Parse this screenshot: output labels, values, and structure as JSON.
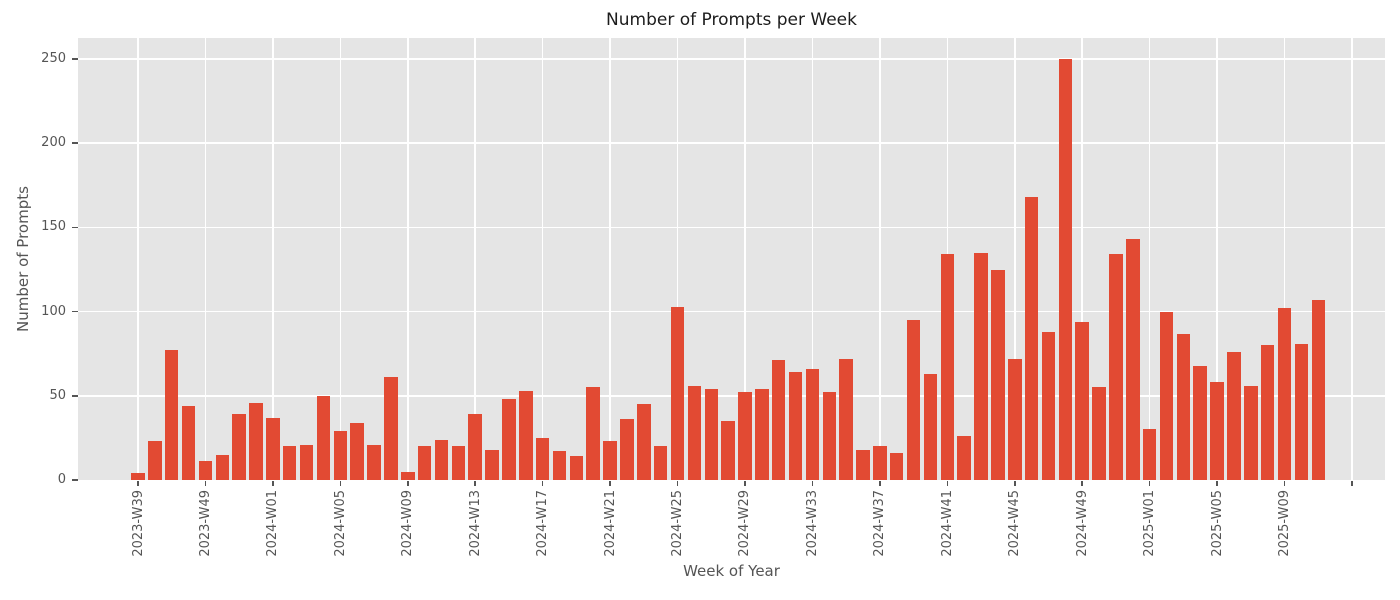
{
  "chart_data": {
    "type": "bar",
    "title": "Number of Prompts per Week",
    "xlabel": "Week of Year",
    "ylabel": "Number of Prompts",
    "ylim": [
      0,
      262.5
    ],
    "yticks": [
      0,
      50,
      100,
      150,
      200,
      250
    ],
    "grid": true,
    "legend": false,
    "bar_color": "#E24A33",
    "plot_bg": "#E5E5E5",
    "grid_color": "#FFFFFF",
    "tick_color": "#555555",
    "title_color": "#1C1C1C",
    "n_bars": 71,
    "values": [
      4,
      23,
      77,
      44,
      11,
      15,
      39,
      46,
      37,
      20,
      21,
      50,
      29,
      34,
      21,
      61,
      5,
      20,
      24,
      20,
      39,
      18,
      48,
      53,
      25,
      17,
      14,
      55,
      23,
      36,
      45,
      20,
      103,
      56,
      54,
      35,
      52,
      54,
      71,
      64,
      66,
      52,
      72,
      18,
      20,
      16,
      95,
      63,
      134,
      26,
      135,
      125,
      72,
      168,
      88,
      250,
      94,
      55,
      134,
      143,
      30,
      100,
      87,
      68,
      58,
      76,
      56,
      80,
      102,
      81,
      107
    ],
    "xticks": [
      {
        "index": 0,
        "label": "2023-W39"
      },
      {
        "index": 4,
        "label": "2023-W49"
      },
      {
        "index": 8,
        "label": "2024-W01"
      },
      {
        "index": 12,
        "label": "2024-W05"
      },
      {
        "index": 16,
        "label": "2024-W09"
      },
      {
        "index": 20,
        "label": "2024-W13"
      },
      {
        "index": 24,
        "label": "2024-W17"
      },
      {
        "index": 28,
        "label": "2024-W21"
      },
      {
        "index": 32,
        "label": "2024-W25"
      },
      {
        "index": 36,
        "label": "2024-W29"
      },
      {
        "index": 40,
        "label": "2024-W33"
      },
      {
        "index": 44,
        "label": "2024-W37"
      },
      {
        "index": 48,
        "label": "2024-W41"
      },
      {
        "index": 52,
        "label": "2024-W45"
      },
      {
        "index": 56,
        "label": "2024-W49"
      },
      {
        "index": 60,
        "label": "2025-W01"
      },
      {
        "index": 64,
        "label": "2025-W05"
      },
      {
        "index": 68,
        "label": "2025-W09"
      },
      {
        "index": 72,
        "label": ""
      }
    ]
  }
}
